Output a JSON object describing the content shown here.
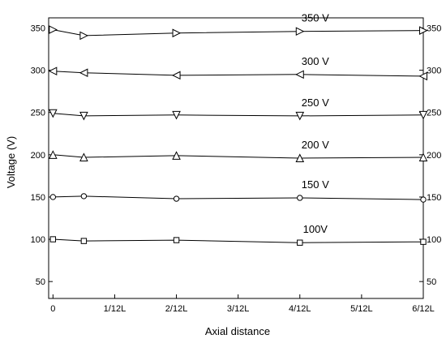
{
  "chart_data": {
    "type": "line",
    "xlabel": "Axial distance",
    "ylabel": "Voltage (V)",
    "x_categories": [
      "0",
      "1/12L",
      "2/12L",
      "3/12L",
      "4/12L",
      "5/12L",
      "6/12L"
    ],
    "x_ticks": [
      0,
      1,
      2,
      3,
      4,
      5,
      6
    ],
    "xlim": [
      -0.07,
      6.0
    ],
    "yticks": [
      50,
      100,
      150,
      200,
      250,
      300,
      350
    ],
    "ylim": [
      30,
      362
    ],
    "grid": false,
    "series": [
      {
        "name": "350 V",
        "marker": "triangle-right",
        "x": [
          0,
          0.5,
          2,
          4,
          6
        ],
        "values": [
          348,
          341,
          344,
          346,
          347
        ]
      },
      {
        "name": "300 V",
        "marker": "triangle-left",
        "x": [
          0,
          0.5,
          2,
          4,
          6
        ],
        "values": [
          299,
          297,
          294,
          295,
          293
        ]
      },
      {
        "name": "250 V",
        "marker": "triangle-down",
        "x": [
          0,
          0.5,
          2,
          4,
          6
        ],
        "values": [
          249,
          246,
          247,
          246,
          247
        ]
      },
      {
        "name": "200 V",
        "marker": "triangle-up",
        "x": [
          0,
          0.5,
          2,
          4,
          6
        ],
        "values": [
          200,
          197,
          199,
          196,
          197
        ]
      },
      {
        "name": "150 V",
        "marker": "circle",
        "x": [
          0,
          0.5,
          2,
          4,
          6
        ],
        "values": [
          150,
          151,
          148,
          149,
          147
        ]
      },
      {
        "name": "100V",
        "marker": "square",
        "x": [
          0,
          0.5,
          2,
          4,
          6
        ],
        "values": [
          100,
          98,
          99,
          96,
          97
        ]
      }
    ]
  }
}
